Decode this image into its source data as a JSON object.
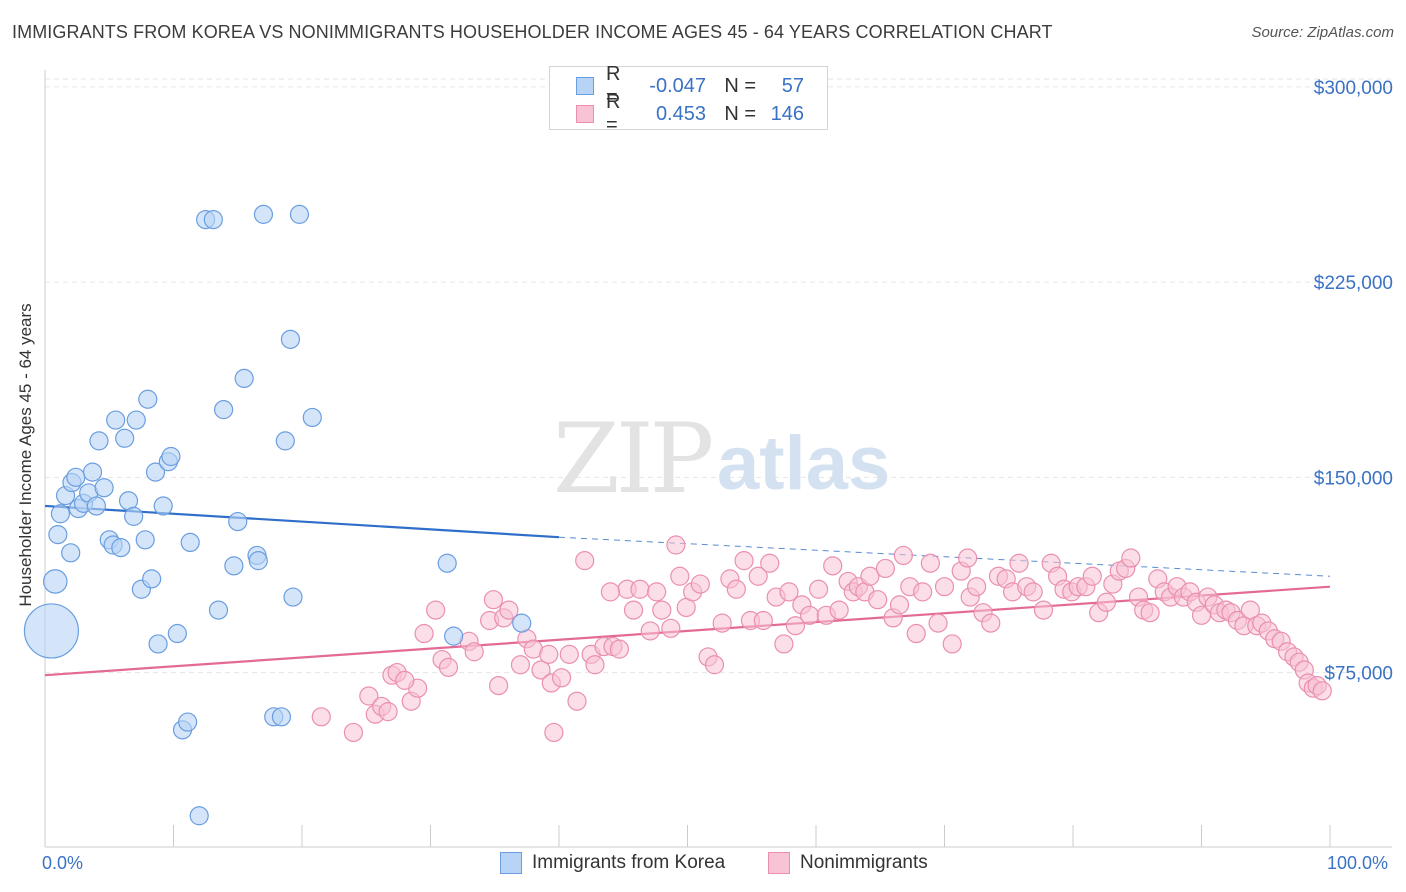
{
  "title": "IMMIGRANTS FROM KOREA VS NONIMMIGRANTS HOUSEHOLDER INCOME AGES 45 - 64 YEARS CORRELATION CHART",
  "source": "Source: ZipAtlas.com",
  "watermark_zip": "ZIP",
  "watermark_atlas": "atlas",
  "legend_top": {
    "r_label": "R =",
    "n_label": "N =",
    "rows": [
      {
        "r": "-0.047",
        "n": "57"
      },
      {
        "r": "0.453",
        "n": "146"
      }
    ]
  },
  "legend_bottom": [
    "Immigrants from Korea",
    "Nonimmigrants"
  ],
  "colors": {
    "blue_fill": "#b7d3f5",
    "blue_stroke": "#6a9ee0",
    "blue_line": "#2f6fc9",
    "pink_fill": "#f8c3d4",
    "pink_stroke": "#ea8fb0",
    "pink_line": "#e46a96",
    "tick_text": "#3a72c4",
    "grid": "#e6e6e6"
  },
  "chart_data": {
    "type": "scatter",
    "title": "IMMIGRANTS FROM KOREA VS NONIMMIGRANTS HOUSEHOLDER INCOME AGES 45 - 64 YEARS CORRELATION CHART",
    "xlabel": "",
    "ylabel": "Householder Income Ages 45 - 64 years",
    "x_tick_labels": [
      "0.0%",
      "100.0%"
    ],
    "y_tick_labels": [
      "$75,000",
      "$150,000",
      "$225,000",
      "$300,000"
    ],
    "y_ticks": [
      75000,
      150000,
      225000,
      300000
    ],
    "xlim": [
      0,
      100
    ],
    "ylim": [
      8000,
      308000
    ],
    "grid": "horizontal dashed",
    "legend_position": "top-center",
    "series": [
      {
        "name": "Immigrants from Korea",
        "r": -0.047,
        "n": 57,
        "trend": {
          "x0": 0,
          "y0": 139000,
          "x1": 40,
          "y1": 127000,
          "dashed_to": 100,
          "y_end": 112000
        },
        "points": [
          [
            0.5,
            91000,
            3
          ],
          [
            0.8,
            110000,
            1.3
          ],
          [
            1.0,
            128000,
            1
          ],
          [
            1.2,
            136000,
            1
          ],
          [
            1.6,
            143000,
            1
          ],
          [
            2.0,
            121000,
            1
          ],
          [
            2.1,
            148000,
            1
          ],
          [
            2.4,
            150000,
            1
          ],
          [
            2.6,
            138000,
            1
          ],
          [
            3.0,
            140000,
            1
          ],
          [
            3.4,
            144000,
            1
          ],
          [
            3.7,
            152000,
            1
          ],
          [
            4.0,
            139000,
            1
          ],
          [
            4.2,
            164000,
            1
          ],
          [
            4.6,
            146000,
            1
          ],
          [
            5.0,
            126000,
            1
          ],
          [
            5.3,
            124000,
            1
          ],
          [
            5.5,
            172000,
            1
          ],
          [
            5.9,
            123000,
            1
          ],
          [
            6.2,
            165000,
            1
          ],
          [
            6.5,
            141000,
            1
          ],
          [
            6.9,
            135000,
            1
          ],
          [
            7.1,
            172000,
            1
          ],
          [
            7.5,
            107000,
            1
          ],
          [
            7.8,
            126000,
            1
          ],
          [
            8.0,
            180000,
            1
          ],
          [
            8.3,
            111000,
            1
          ],
          [
            8.6,
            152000,
            1
          ],
          [
            8.8,
            86000,
            1
          ],
          [
            9.2,
            139000,
            1
          ],
          [
            9.6,
            156000,
            1
          ],
          [
            9.8,
            158000,
            1
          ],
          [
            10.3,
            90000,
            1
          ],
          [
            10.7,
            53000,
            1
          ],
          [
            11.1,
            56000,
            1
          ],
          [
            11.3,
            125000,
            1
          ],
          [
            12.0,
            20000,
            1
          ],
          [
            12.5,
            249000,
            1
          ],
          [
            13.1,
            249000,
            1
          ],
          [
            13.5,
            99000,
            1
          ],
          [
            13.9,
            176000,
            1
          ],
          [
            14.7,
            116000,
            1
          ],
          [
            15.0,
            133000,
            1
          ],
          [
            15.5,
            188000,
            1
          ],
          [
            16.5,
            120000,
            1
          ],
          [
            16.6,
            118000,
            1
          ],
          [
            17.0,
            251000,
            1
          ],
          [
            17.8,
            58000,
            1
          ],
          [
            18.4,
            58000,
            1
          ],
          [
            18.7,
            164000,
            1
          ],
          [
            19.1,
            203000,
            1
          ],
          [
            19.3,
            104000,
            1
          ],
          [
            19.8,
            251000,
            1
          ],
          [
            20.8,
            173000,
            1
          ],
          [
            31.3,
            117000,
            1
          ],
          [
            31.8,
            89000,
            1
          ],
          [
            37.1,
            94000,
            1
          ]
        ]
      },
      {
        "name": "Nonimmigrants",
        "r": 0.453,
        "n": 146,
        "trend": {
          "x0": 0,
          "y0": 74000,
          "x1": 100,
          "y1": 108000
        },
        "points": [
          [
            21.5,
            58000
          ],
          [
            24.0,
            52000
          ],
          [
            25.2,
            66000
          ],
          [
            25.7,
            59000
          ],
          [
            26.2,
            62000
          ],
          [
            26.7,
            60000
          ],
          [
            27.0,
            74000
          ],
          [
            27.4,
            75000
          ],
          [
            28.5,
            64000
          ],
          [
            29.0,
            69000
          ],
          [
            29.5,
            90000
          ],
          [
            30.4,
            99000
          ],
          [
            30.9,
            80000
          ],
          [
            31.4,
            77000
          ],
          [
            33.0,
            87000
          ],
          [
            33.4,
            83000
          ],
          [
            34.6,
            95000
          ],
          [
            34.9,
            103000
          ],
          [
            35.3,
            70000
          ],
          [
            35.7,
            96000
          ],
          [
            36.1,
            99000
          ],
          [
            37.0,
            78000
          ],
          [
            37.5,
            88000
          ],
          [
            38.0,
            84000
          ],
          [
            38.6,
            76000
          ],
          [
            39.2,
            82000
          ],
          [
            39.4,
            71000
          ],
          [
            39.6,
            52000
          ],
          [
            40.2,
            73000
          ],
          [
            40.8,
            82000
          ],
          [
            41.4,
            64000
          ],
          [
            42.0,
            118000
          ],
          [
            42.5,
            82000
          ],
          [
            42.8,
            78000
          ],
          [
            43.5,
            85000
          ],
          [
            44.2,
            85000
          ],
          [
            44.7,
            84000
          ],
          [
            45.3,
            107000
          ],
          [
            45.8,
            99000
          ],
          [
            46.3,
            107000
          ],
          [
            47.1,
            91000
          ],
          [
            47.6,
            106000
          ],
          [
            48.0,
            99000
          ],
          [
            48.7,
            92000
          ],
          [
            49.1,
            124000
          ],
          [
            49.4,
            112000
          ],
          [
            49.9,
            100000
          ],
          [
            50.4,
            106000
          ],
          [
            51.0,
            109000
          ],
          [
            51.6,
            81000
          ],
          [
            52.1,
            78000
          ],
          [
            52.7,
            94000
          ],
          [
            53.3,
            111000
          ],
          [
            53.8,
            107000
          ],
          [
            54.4,
            118000
          ],
          [
            54.9,
            95000
          ],
          [
            55.5,
            112000
          ],
          [
            55.9,
            95000
          ],
          [
            56.4,
            117000
          ],
          [
            56.9,
            104000
          ],
          [
            57.5,
            86000
          ],
          [
            57.9,
            106000
          ],
          [
            58.4,
            93000
          ],
          [
            58.9,
            101000
          ],
          [
            59.5,
            97000
          ],
          [
            60.2,
            107000
          ],
          [
            60.8,
            97000
          ],
          [
            61.3,
            116000
          ],
          [
            61.8,
            99000
          ],
          [
            62.5,
            110000
          ],
          [
            62.9,
            106000
          ],
          [
            63.3,
            108000
          ],
          [
            63.8,
            106000
          ],
          [
            64.2,
            112000
          ],
          [
            64.8,
            103000
          ],
          [
            65.4,
            115000
          ],
          [
            66.0,
            96000
          ],
          [
            66.5,
            101000
          ],
          [
            67.3,
            108000
          ],
          [
            67.8,
            90000
          ],
          [
            68.3,
            106000
          ],
          [
            68.9,
            117000
          ],
          [
            69.5,
            94000
          ],
          [
            70.0,
            108000
          ],
          [
            70.6,
            86000
          ],
          [
            71.3,
            114000
          ],
          [
            72.0,
            104000
          ],
          [
            72.5,
            108000
          ],
          [
            73.0,
            98000
          ],
          [
            73.6,
            94000
          ],
          [
            74.2,
            112000
          ],
          [
            74.8,
            111000
          ],
          [
            75.3,
            106000
          ],
          [
            75.8,
            117000
          ],
          [
            76.4,
            108000
          ],
          [
            76.9,
            106000
          ],
          [
            77.7,
            99000
          ],
          [
            78.3,
            117000
          ],
          [
            78.8,
            112000
          ],
          [
            79.3,
            107000
          ],
          [
            79.9,
            106000
          ],
          [
            80.4,
            108000
          ],
          [
            81.0,
            108000
          ],
          [
            81.5,
            112000
          ],
          [
            82.0,
            98000
          ],
          [
            82.6,
            102000
          ],
          [
            83.1,
            109000
          ],
          [
            83.6,
            114000
          ],
          [
            84.1,
            115000
          ],
          [
            84.5,
            119000
          ],
          [
            85.1,
            104000
          ],
          [
            85.5,
            99000
          ],
          [
            86.0,
            98000
          ],
          [
            86.6,
            111000
          ],
          [
            87.1,
            106000
          ],
          [
            87.6,
            104000
          ],
          [
            88.1,
            108000
          ],
          [
            88.6,
            104000
          ],
          [
            89.1,
            106000
          ],
          [
            89.6,
            102000
          ],
          [
            90.0,
            97000
          ],
          [
            90.5,
            104000
          ],
          [
            91.0,
            101000
          ],
          [
            91.4,
            98000
          ],
          [
            91.9,
            99000
          ],
          [
            92.3,
            98000
          ],
          [
            92.8,
            95000
          ],
          [
            93.3,
            93000
          ],
          [
            93.8,
            99000
          ],
          [
            94.3,
            93000
          ],
          [
            94.7,
            94000
          ],
          [
            95.2,
            91000
          ],
          [
            95.7,
            88000
          ],
          [
            96.2,
            87000
          ],
          [
            96.7,
            83000
          ],
          [
            97.2,
            81000
          ],
          [
            97.6,
            79000
          ],
          [
            98.0,
            76000
          ],
          [
            98.3,
            71000
          ],
          [
            98.7,
            69000
          ],
          [
            99.0,
            70000
          ],
          [
            99.4,
            68000
          ],
          [
            28.0,
            72000
          ],
          [
            44.0,
            106000
          ],
          [
            66.8,
            120000
          ],
          [
            71.8,
            119000
          ]
        ]
      }
    ]
  }
}
